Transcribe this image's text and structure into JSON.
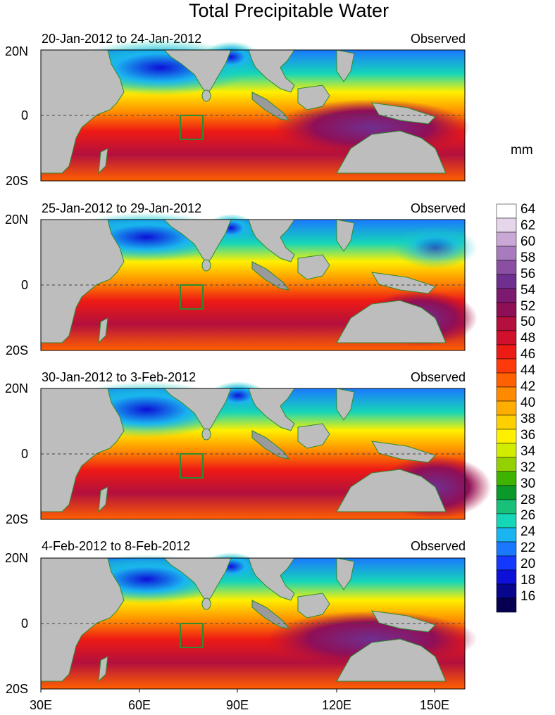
{
  "title": "Total Precipitable Water",
  "unit_label": "mm",
  "panels": [
    {
      "period": "20-Jan-2012 to 24-Jan-2012",
      "status": "Observed"
    },
    {
      "period": "25-Jan-2012 to 29-Jan-2012",
      "status": "Observed"
    },
    {
      "period": "30-Jan-2012 to 3-Feb-2012",
      "status": "Observed"
    },
    {
      "period": "4-Feb-2012 to 8-Feb-2012",
      "status": "Observed"
    }
  ],
  "lat_labels": [
    "20N",
    "0",
    "20S"
  ],
  "lon_labels": [
    "30E",
    "60E",
    "90E",
    "120E",
    "150E"
  ],
  "colorbar": {
    "labels": [
      "64",
      "62",
      "60",
      "58",
      "56",
      "54",
      "52",
      "50",
      "48",
      "46",
      "44",
      "42",
      "40",
      "38",
      "36",
      "34",
      "32",
      "30",
      "28",
      "26",
      "24",
      "22",
      "20",
      "18",
      "16"
    ],
    "colors": [
      "#ffffff",
      "#e6d6ec",
      "#c9a8d6",
      "#a77bbd",
      "#8a4fa2",
      "#6f2f8f",
      "#7c1a70",
      "#8f0f57",
      "#b3103e",
      "#d3102b",
      "#ee1a14",
      "#ff3a0a",
      "#ff6000",
      "#ff8a00",
      "#ffae00",
      "#ffd000",
      "#fff000",
      "#d2ec00",
      "#93d200",
      "#3fb400",
      "#0a9a2a",
      "#18c07a",
      "#16d6b8",
      "#1ab4f0",
      "#1a78ff",
      "#1438ff",
      "#0c10d8",
      "#08068c",
      "#050050"
    ]
  }
}
